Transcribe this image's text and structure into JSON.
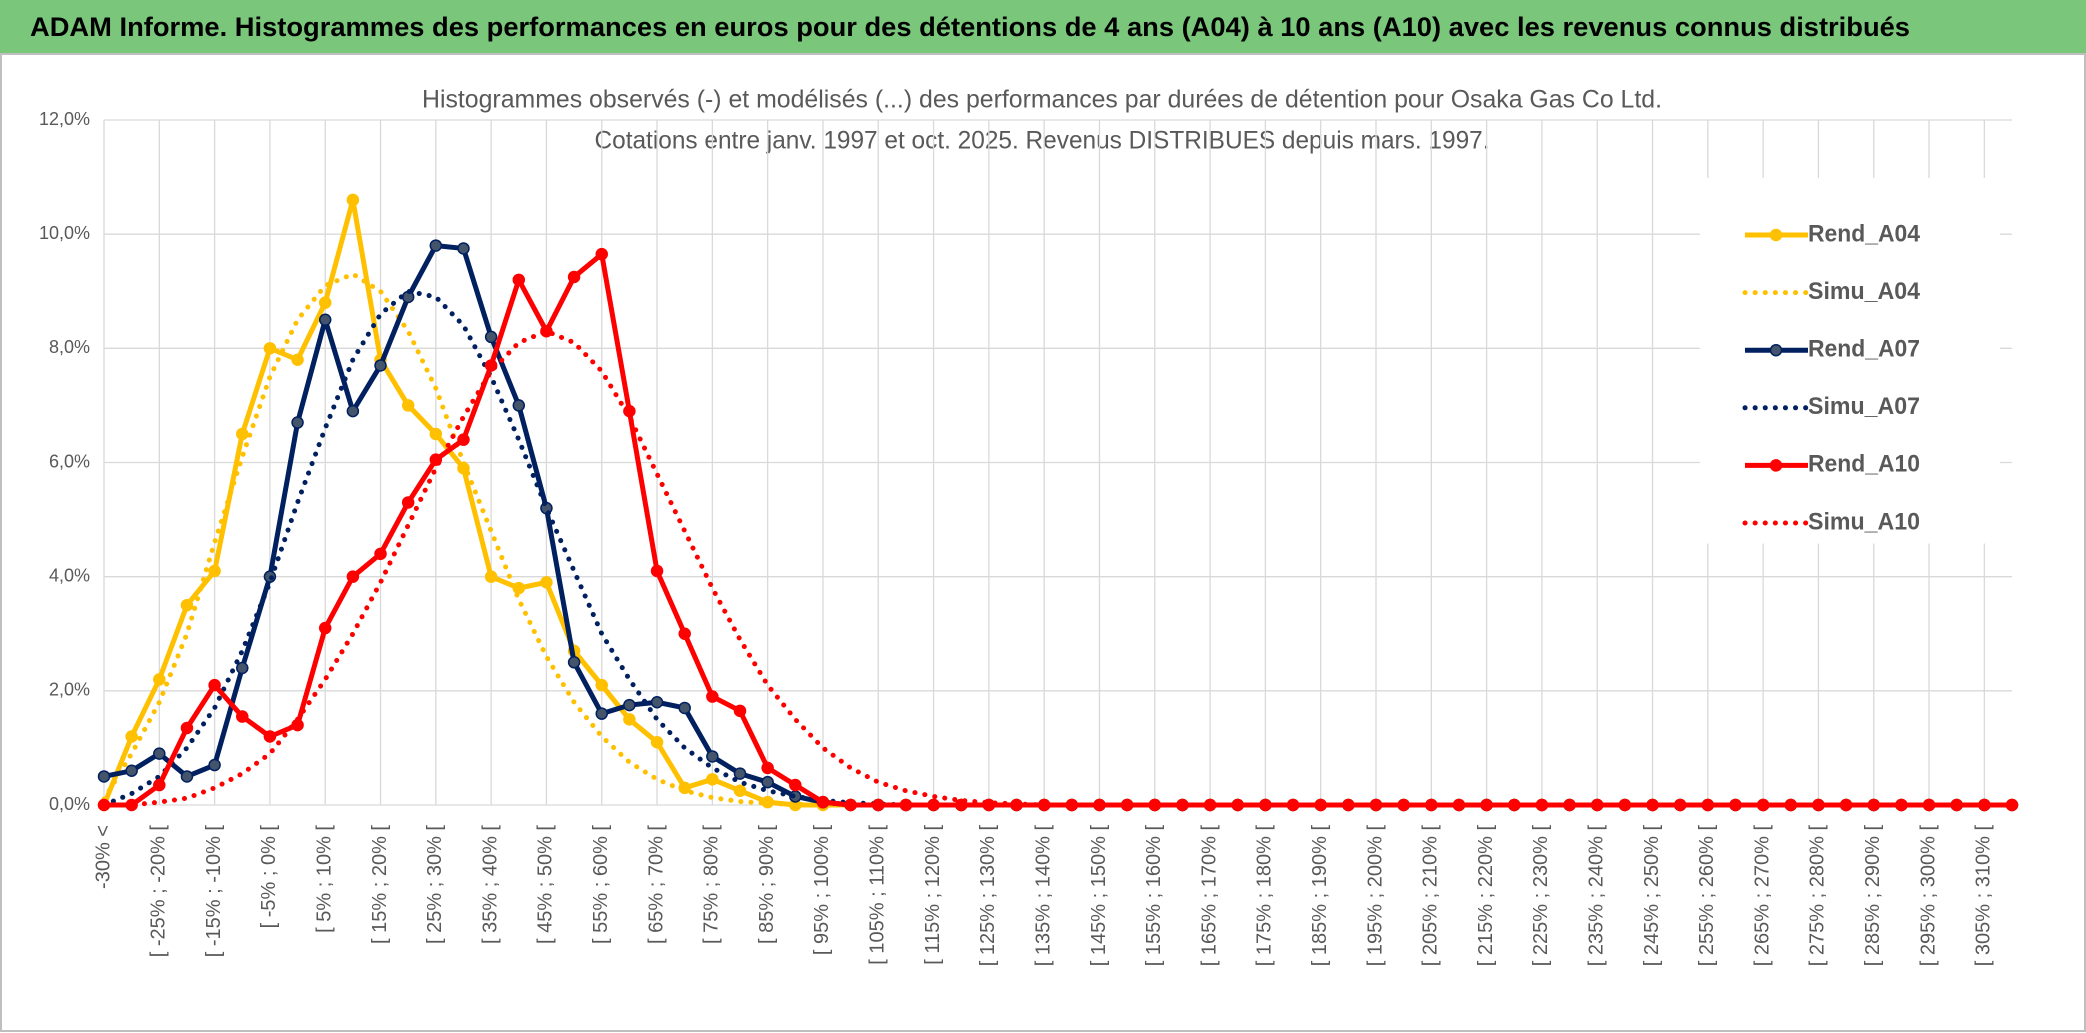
{
  "header": {
    "title": "ADAM Informe. Histogrammes des performances en euros pour des détentions de 4 ans (A04) à 10 ans (A10) avec les revenus connus distribués"
  },
  "chart_data": {
    "type": "line",
    "title": "Histogrammes observés (-) et modélisés (...) des performances par durées de détention pour Osaka Gas Co Ltd.",
    "subtitle": "Cotations entre janv. 1997 et oct. 2025. Revenus DISTRIBUES depuis mars. 1997.",
    "categories": [
      "-30% <",
      null,
      "[ -25% ; -20% [",
      null,
      "[ -15% ; -10% [",
      null,
      "[ -5% ; 0% [",
      null,
      "[ 5% ; 10% [",
      null,
      "[ 15% ; 20% [",
      null,
      "[ 25% ; 30% [",
      null,
      "[ 35% ; 40% [",
      null,
      "[ 45% ; 50% [",
      null,
      "[ 55% ; 60% [",
      null,
      "[ 65% ; 70% [",
      null,
      "[ 75% ; 80% [",
      null,
      "[ 85% ; 90% [",
      null,
      "[ 95% ; 100% [",
      null,
      "[ 105% ; 110% [",
      null,
      "[ 115% ; 120% [",
      null,
      "[ 125% ; 130% [",
      null,
      "[ 135% ; 140% [",
      null,
      "[ 145% ; 150% [",
      null,
      "[ 155% ; 160% [",
      null,
      "[ 165% ; 170% [",
      null,
      "[ 175% ; 180% [",
      null,
      "[ 185% ; 190% [",
      null,
      "[ 195% ; 200% [",
      null,
      "[ 205% ; 210% [",
      null,
      "[ 215% ; 220% [",
      null,
      "[ 225% ; 230% [",
      null,
      "[ 235% ; 240% [",
      null,
      "[ 245% ; 250% [",
      null,
      "[ 255% ; 260% [",
      null,
      "[ 265% ; 270% [",
      null,
      "[ 275% ; 280% [",
      null,
      "[ 285% ; 290% [",
      null,
      "[ 295% ; 300% [",
      null,
      "[ 305% ; 310% [",
      null
    ],
    "series": [
      {
        "name": "Rend_A04",
        "color": "#ffc000",
        "style": "solid",
        "markers": true,
        "values": [
          0.0,
          1.2,
          2.2,
          3.5,
          4.1,
          6.5,
          8.0,
          7.8,
          8.8,
          10.6,
          7.8,
          7.0,
          6.5,
          5.9,
          4.0,
          3.8,
          3.9,
          2.7,
          2.1,
          1.5,
          1.1,
          0.3,
          0.45,
          0.25,
          0.05,
          0.0,
          0,
          0,
          0,
          0,
          0,
          0,
          0,
          0,
          0,
          0,
          0,
          0,
          0,
          0,
          0,
          0,
          0,
          0,
          0,
          0,
          0,
          0,
          0,
          0,
          0,
          0,
          0,
          0,
          0,
          0,
          0,
          0,
          0,
          0,
          0,
          0,
          0,
          0,
          0,
          0,
          0,
          0,
          0,
          0
        ]
      },
      {
        "name": "Simu_A04",
        "color": "#ffc000",
        "style": "dotted",
        "markers": false,
        "values": [
          0.1,
          0.9,
          1.8,
          3.0,
          4.6,
          6.1,
          7.5,
          8.5,
          9.1,
          9.3,
          9.0,
          8.3,
          7.3,
          6.0,
          4.8,
          3.6,
          2.6,
          1.8,
          1.2,
          0.75,
          0.45,
          0.25,
          0.13,
          0.06,
          0.03,
          0.01,
          0,
          0,
          0,
          0,
          0,
          0,
          0,
          0,
          0,
          0,
          0,
          0,
          0,
          0,
          0,
          0,
          0,
          0,
          0,
          0,
          0,
          0,
          0,
          0,
          0,
          0,
          0,
          0,
          0,
          0,
          0,
          0,
          0,
          0,
          0,
          0,
          0,
          0,
          0,
          0,
          0,
          0,
          0,
          0
        ]
      },
      {
        "name": "Rend_A07",
        "color": "#002060",
        "style": "solid",
        "markers": true,
        "values": [
          0.5,
          0.6,
          0.9,
          0.5,
          0.7,
          2.4,
          4.0,
          6.7,
          8.5,
          6.9,
          7.7,
          8.9,
          9.8,
          9.75,
          8.2,
          7.0,
          5.2,
          2.5,
          1.6,
          1.75,
          1.8,
          1.7,
          0.85,
          0.55,
          0.4,
          0.15,
          0.05,
          0,
          0,
          0,
          0,
          0,
          0,
          0,
          0,
          0,
          0,
          0,
          0,
          0,
          0,
          0,
          0,
          0,
          0,
          0,
          0,
          0,
          0,
          0,
          0,
          0,
          0,
          0,
          0,
          0,
          0,
          0,
          0,
          0,
          0,
          0,
          0,
          0,
          0,
          0,
          0,
          0,
          0,
          0
        ]
      },
      {
        "name": "Simu_A07",
        "color": "#002060",
        "style": "dotted",
        "markers": false,
        "values": [
          0.0,
          0.2,
          0.5,
          1.0,
          1.7,
          2.7,
          3.9,
          5.3,
          6.6,
          7.8,
          8.6,
          9.0,
          8.9,
          8.4,
          7.5,
          6.4,
          5.2,
          4.1,
          3.0,
          2.2,
          1.5,
          1.0,
          0.65,
          0.4,
          0.25,
          0.15,
          0.08,
          0.04,
          0.02,
          0,
          0,
          0,
          0,
          0,
          0,
          0,
          0,
          0,
          0,
          0,
          0,
          0,
          0,
          0,
          0,
          0,
          0,
          0,
          0,
          0,
          0,
          0,
          0,
          0,
          0,
          0,
          0,
          0,
          0,
          0,
          0,
          0,
          0,
          0,
          0,
          0,
          0,
          0,
          0,
          0
        ]
      },
      {
        "name": "Rend_A10",
        "color": "#ff0000",
        "style": "solid",
        "markers": true,
        "values": [
          0.0,
          0.0,
          0.35,
          1.35,
          2.1,
          1.55,
          1.2,
          1.4,
          3.1,
          4.0,
          4.4,
          5.3,
          6.05,
          6.4,
          7.7,
          9.2,
          8.3,
          9.25,
          9.65,
          6.9,
          4.1,
          3.0,
          1.9,
          1.65,
          0.65,
          0.35,
          0.05,
          0,
          0,
          0,
          0,
          0,
          0,
          0,
          0,
          0,
          0,
          0,
          0,
          0,
          0,
          0,
          0,
          0,
          0,
          0,
          0,
          0,
          0,
          0,
          0,
          0,
          0,
          0,
          0,
          0,
          0,
          0,
          0,
          0,
          0,
          0,
          0,
          0,
          0,
          0,
          0,
          0,
          0,
          0
        ]
      },
      {
        "name": "Simu_A10",
        "color": "#ff0000",
        "style": "dotted",
        "markers": false,
        "values": [
          0.0,
          0.0,
          0.05,
          0.12,
          0.3,
          0.55,
          0.9,
          1.5,
          2.2,
          3.0,
          3.9,
          4.9,
          5.9,
          6.8,
          7.6,
          8.1,
          8.3,
          8.1,
          7.6,
          6.8,
          5.8,
          4.8,
          3.8,
          2.9,
          2.1,
          1.5,
          1.0,
          0.65,
          0.4,
          0.25,
          0.15,
          0.08,
          0.04,
          0.02,
          0,
          0,
          0,
          0,
          0,
          0,
          0,
          0,
          0,
          0,
          0,
          0,
          0,
          0,
          0,
          0,
          0,
          0,
          0,
          0,
          0,
          0,
          0,
          0,
          0,
          0,
          0,
          0,
          0,
          0,
          0,
          0,
          0,
          0,
          0,
          0
        ]
      }
    ],
    "ylim": [
      0,
      12
    ],
    "yticks": [
      {
        "value": 0,
        "label": "0,0%"
      },
      {
        "value": 2,
        "label": "2,0%"
      },
      {
        "value": 4,
        "label": "4,0%"
      },
      {
        "value": 6,
        "label": "6,0%"
      },
      {
        "value": 8,
        "label": "8,0%"
      },
      {
        "value": 10,
        "label": "10,0%"
      },
      {
        "value": 12,
        "label": "12,0%"
      }
    ],
    "grid": true,
    "legend": "right"
  }
}
